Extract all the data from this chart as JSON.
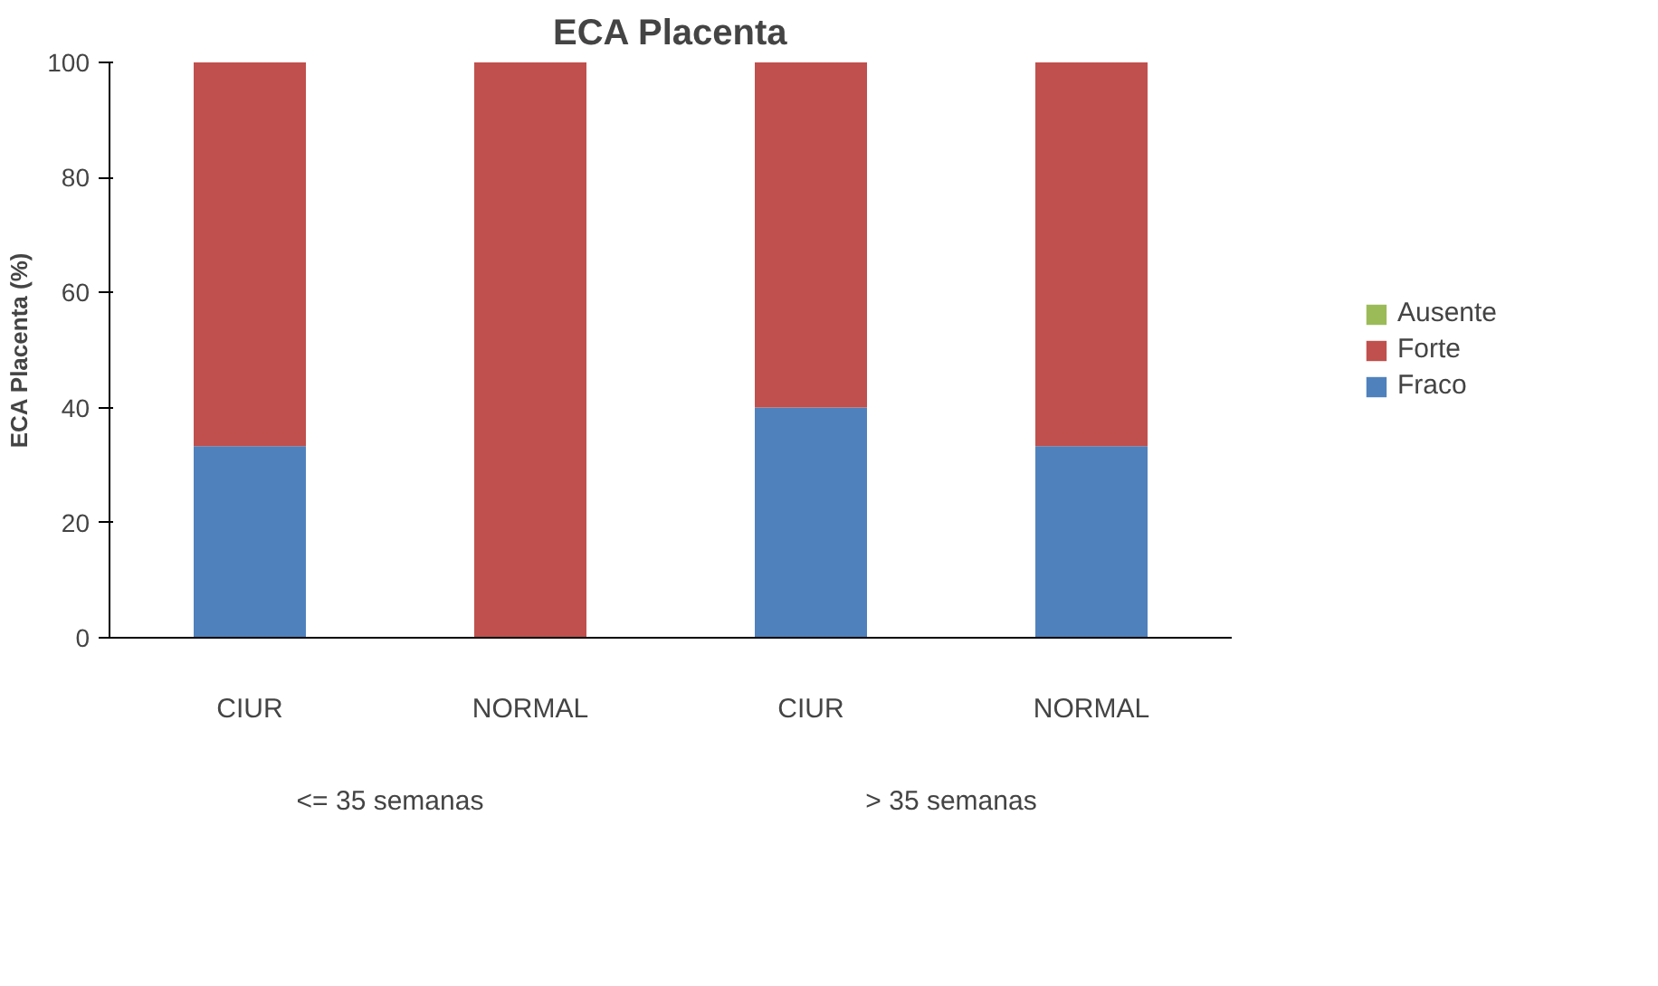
{
  "chart_data": {
    "type": "bar",
    "title": "ECA Placenta",
    "ylabel": "ECA Placenta (%)",
    "stacked": true,
    "categories": [
      "CIUR",
      "NORMAL",
      "CIUR",
      "NORMAL"
    ],
    "series": [
      {
        "name": "Fraco",
        "color": "#4f81bd",
        "values": [
          33.3,
          0,
          40,
          33.3
        ]
      },
      {
        "name": "Forte",
        "color": "#c0504d",
        "values": [
          66.7,
          100,
          60,
          66.7
        ]
      },
      {
        "name": "Ausente",
        "color": "#9bbb59",
        "values": [
          0,
          0,
          0,
          0
        ]
      }
    ],
    "annotations": [
      "<= 35 semanas",
      "> 35 semanas"
    ],
    "ylim": [
      0,
      100
    ],
    "yticks": [
      0,
      20,
      40,
      60,
      80,
      100
    ],
    "grid": false,
    "legend": "right"
  }
}
